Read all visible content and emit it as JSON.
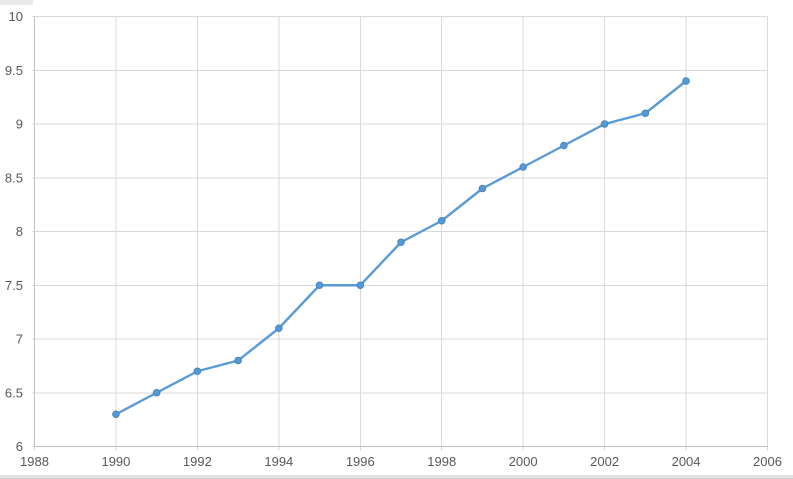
{
  "chart_data": {
    "type": "line",
    "x": [
      1990,
      1991,
      1992,
      1993,
      1994,
      1995,
      1996,
      1997,
      1998,
      1999,
      2000,
      2001,
      2002,
      2003,
      2004
    ],
    "values": [
      6.3,
      6.5,
      6.7,
      6.8,
      7.1,
      7.5,
      7.5,
      7.9,
      8.1,
      8.4,
      8.6,
      8.8,
      9.0,
      9.1,
      9.4
    ],
    "xlim": [
      1988,
      2006
    ],
    "ylim": [
      6,
      10
    ],
    "x_tick_labels": [
      "1988",
      "1990",
      "1992",
      "1994",
      "1996",
      "1998",
      "2000",
      "2002",
      "2004",
      "2006"
    ],
    "y_tick_labels": [
      "6",
      "6.5",
      "7",
      "7.5",
      "8",
      "8.5",
      "9",
      "9.5",
      "10"
    ],
    "grid": true,
    "legend": false,
    "marker": "circle",
    "colors": {
      "series": "#5B9BD5",
      "marker_fill": "#549BD5",
      "marker_stroke": "#4A82BD",
      "gridline": "#D9D9D9",
      "axis_line": "#BFBFBF",
      "tick_label": "#595959"
    }
  }
}
